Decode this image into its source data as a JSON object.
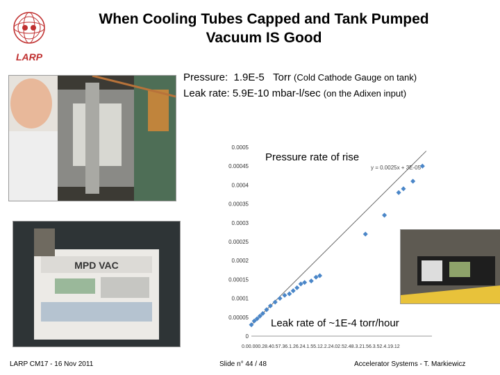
{
  "slide": {
    "title_line1": "When Cooling Tubes Capped and Tank Pumped",
    "title_line2": "Vacuum IS Good",
    "logo_text": "LARP",
    "pressure_label": "Pressure:",
    "pressure_value": "1.9E-5",
    "pressure_unit": "Torr",
    "pressure_note": "(Cold Cathode Gauge on tank)",
    "leak_label": "Leak rate:",
    "leak_value": "5.9E-10 mbar-l/sec",
    "leak_note": "(on the Adixen input)",
    "pump_label": "MPD VAC",
    "footer_left": "LARP CM17 - 16 Nov 2011",
    "footer_center": "Slide n° 44 / 48",
    "footer_right": "Accelerator Systems - T. Markiewicz"
  },
  "chart_data": {
    "type": "scatter",
    "title": "Pressure rate of rise",
    "annotation": "Leak rate of ~1E-4 torr/hour",
    "trendline_label": "y = 0.0025x + 3E-05",
    "trendline": {
      "slope": 0.0025,
      "intercept": 3e-05
    },
    "ylim": [
      0,
      0.0005
    ],
    "yticks": [
      "0",
      "0.00005",
      "0.0001",
      "0.00015",
      "0.0002",
      "0.00025",
      "0.0003",
      "0.00035",
      "0.0004",
      "0.00045",
      "0.0005"
    ],
    "yticks_val": [
      0,
      5e-05,
      0.0001,
      0.00015,
      0.0002,
      0.00025,
      0.0003,
      0.00035,
      0.0004,
      0.00045,
      0.0005
    ],
    "xlim": [
      0,
      0.19
    ],
    "xtick_text": "0.00.000.28.40.57.36.1.26.24.1.55.12.2.24.02.52.48.3.21.56.3.52.4.19.12",
    "x": [
      0.0,
      0.003,
      0.006,
      0.009,
      0.012,
      0.016,
      0.02,
      0.025,
      0.03,
      0.035,
      0.04,
      0.044,
      0.048,
      0.052,
      0.056,
      0.063,
      0.068,
      0.072,
      0.12,
      0.14,
      0.155,
      0.16,
      0.17,
      0.18
    ],
    "y": [
      3e-05,
      4e-05,
      4.6e-05,
      5.3e-05,
      6e-05,
      7e-05,
      8e-05,
      9e-05,
      0.0001,
      0.000108,
      0.000112,
      0.00012,
      0.000128,
      0.000138,
      0.000142,
      0.000146,
      0.000156,
      0.00016,
      0.00027,
      0.00032,
      0.00038,
      0.00039,
      0.00041,
      0.00045
    ]
  }
}
